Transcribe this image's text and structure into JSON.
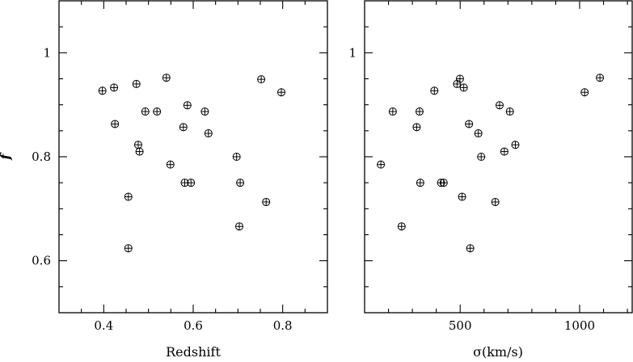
{
  "chart_data": [
    {
      "type": "scatter",
      "title": "",
      "xlabel": "Redshift",
      "ylabel": "f",
      "xlim": [
        0.3,
        0.9
      ],
      "ylim": [
        0.5,
        1.1
      ],
      "x_ticks": [
        "0.4",
        "0.6",
        "0.8"
      ],
      "y_ticks": [
        "0.6",
        "0.8",
        "1"
      ],
      "marker": "circle-plus",
      "grid": false,
      "points": [
        [
          0.397,
          0.927
        ],
        [
          0.423,
          0.933
        ],
        [
          0.425,
          0.863
        ],
        [
          0.455,
          0.723
        ],
        [
          0.455,
          0.624
        ],
        [
          0.473,
          0.94
        ],
        [
          0.477,
          0.823
        ],
        [
          0.48,
          0.81
        ],
        [
          0.493,
          0.887
        ],
        [
          0.519,
          0.887
        ],
        [
          0.54,
          0.952
        ],
        [
          0.549,
          0.785
        ],
        [
          0.578,
          0.857
        ],
        [
          0.581,
          0.75
        ],
        [
          0.587,
          0.899
        ],
        [
          0.595,
          0.75
        ],
        [
          0.626,
          0.887
        ],
        [
          0.634,
          0.845
        ],
        [
          0.697,
          0.8
        ],
        [
          0.703,
          0.666
        ],
        [
          0.705,
          0.75
        ],
        [
          0.752,
          0.949
        ],
        [
          0.763,
          0.713
        ],
        [
          0.797,
          0.924
        ]
      ]
    },
    {
      "type": "scatter",
      "title": "",
      "xlabel": "σ(km/s)",
      "ylabel": "",
      "xlim": [
        100,
        1220
      ],
      "ylim": [
        0.5,
        1.1
      ],
      "x_ticks": [
        "500",
        "1000"
      ],
      "y_ticks": [
        "1"
      ],
      "marker": "circle-plus",
      "grid": false,
      "points": [
        [
          168,
          0.785
        ],
        [
          218,
          0.887
        ],
        [
          255,
          0.666
        ],
        [
          318,
          0.857
        ],
        [
          330,
          0.887
        ],
        [
          333,
          0.75
        ],
        [
          392,
          0.927
        ],
        [
          420,
          0.75
        ],
        [
          431,
          0.75
        ],
        [
          487,
          0.94
        ],
        [
          499,
          0.95
        ],
        [
          508,
          0.723
        ],
        [
          515,
          0.933
        ],
        [
          537,
          0.863
        ],
        [
          542,
          0.624
        ],
        [
          576,
          0.845
        ],
        [
          588,
          0.8
        ],
        [
          647,
          0.713
        ],
        [
          665,
          0.899
        ],
        [
          685,
          0.81
        ],
        [
          708,
          0.887
        ],
        [
          731,
          0.823
        ],
        [
          1021,
          0.924
        ],
        [
          1085,
          0.952
        ]
      ]
    }
  ]
}
